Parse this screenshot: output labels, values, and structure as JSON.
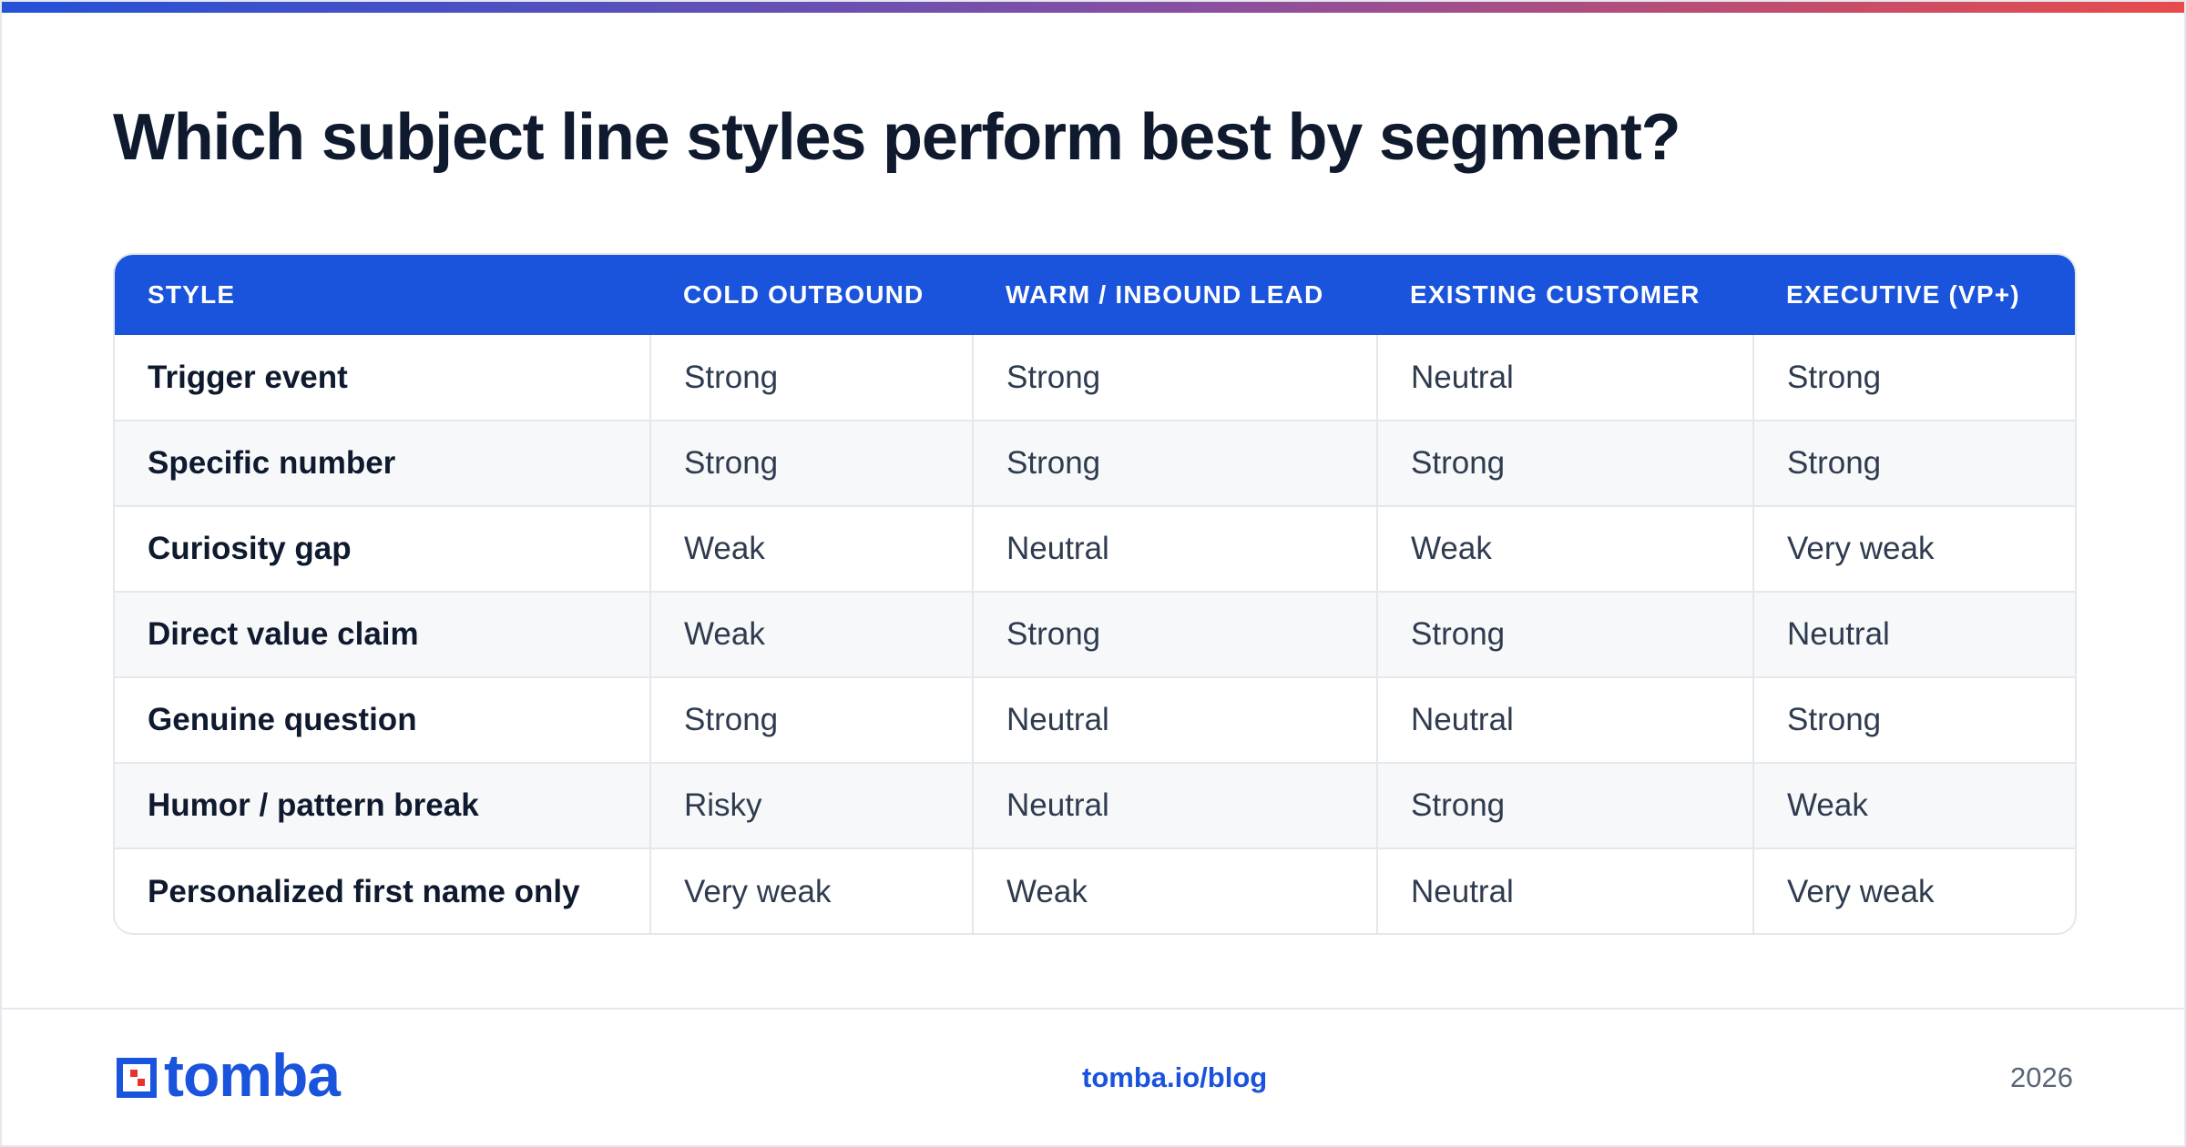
{
  "title": "Which subject line styles perform best by segment?",
  "colors": {
    "primary_blue": "#1a53dc",
    "gradient_start": "#2451d8",
    "gradient_mid": "#8a4fa0",
    "gradient_end": "#e84b4b",
    "logo_red": "#e8322f"
  },
  "table": {
    "headers": [
      "STYLE",
      "COLD OUTBOUND",
      "WARM / INBOUND LEAD",
      "EXISTING CUSTOMER",
      "EXECUTIVE (VP+)"
    ],
    "rows": [
      [
        "Trigger event",
        "Strong",
        "Strong",
        "Neutral",
        "Strong"
      ],
      [
        "Specific number",
        "Strong",
        "Strong",
        "Strong",
        "Strong"
      ],
      [
        "Curiosity gap",
        "Weak",
        "Neutral",
        "Weak",
        "Very weak"
      ],
      [
        "Direct value claim",
        "Weak",
        "Strong",
        "Strong",
        "Neutral"
      ],
      [
        "Genuine question",
        "Strong",
        "Neutral",
        "Neutral",
        "Strong"
      ],
      [
        "Humor / pattern break",
        "Risky",
        "Neutral",
        "Strong",
        "Weak"
      ],
      [
        "Personalized first name only",
        "Very weak",
        "Weak",
        "Neutral",
        "Very weak"
      ]
    ]
  },
  "footer": {
    "logo_text": "tomba",
    "link": "tomba.io/blog",
    "year": "2026"
  },
  "icons": {
    "logo_mark": "tomba-logo-icon"
  }
}
